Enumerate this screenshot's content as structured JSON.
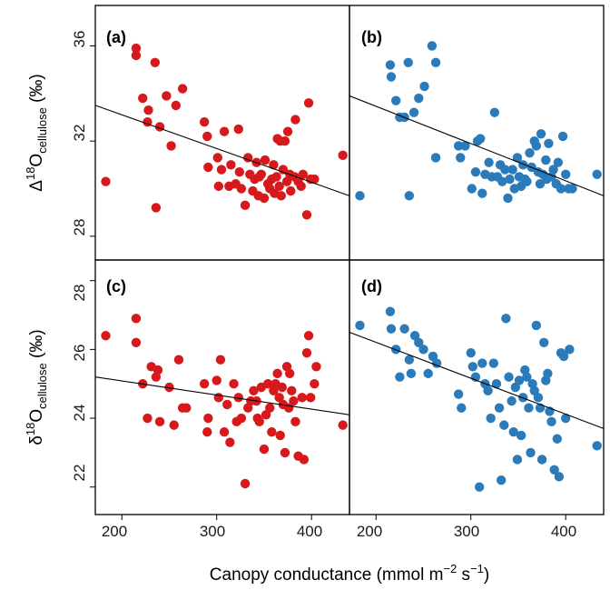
{
  "figure": {
    "xlabel": {
      "main": "Canopy conductance (mmol m",
      "exp1": "−2",
      "mid": " s",
      "exp2": "−1",
      "end": ")"
    },
    "ylabel_top": {
      "prefix": "Δ",
      "sup": "18",
      "main": "O",
      "sub": "cellulose",
      "unit": " (‰)"
    },
    "ylabel_bottom": {
      "prefix": "δ",
      "sup": "18",
      "main": "O",
      "sub": "cellulose",
      "unit": " (‰)"
    },
    "x_ticks": [
      "200",
      "300",
      "400"
    ],
    "y_ticks_top": [
      "28",
      "32",
      "36"
    ],
    "y_ticks_bottom": [
      "22",
      "24",
      "26",
      "28"
    ]
  },
  "colors": {
    "red": "#d7191c",
    "blue": "#2b7bba"
  },
  "chart_data": [
    {
      "type": "scatter",
      "panel": "(a)",
      "color": "#d7191c",
      "xlim": [
        172,
        440
      ],
      "ylim": [
        27.0,
        37.7
      ],
      "fit_line": [
        [
          172,
          33.5
        ],
        [
          440,
          29.7
        ]
      ],
      "points": [
        [
          183,
          30.3
        ],
        [
          215,
          35.9
        ],
        [
          215,
          35.6
        ],
        [
          222,
          33.8
        ],
        [
          227,
          32.8
        ],
        [
          228,
          33.3
        ],
        [
          235,
          35.3
        ],
        [
          236,
          29.2
        ],
        [
          240,
          32.6
        ],
        [
          247,
          33.9
        ],
        [
          252,
          31.8
        ],
        [
          257,
          33.5
        ],
        [
          264,
          34.2
        ],
        [
          287,
          32.8
        ],
        [
          290,
          32.2
        ],
        [
          291,
          30.9
        ],
        [
          301,
          31.3
        ],
        [
          302,
          30.1
        ],
        [
          305,
          30.8
        ],
        [
          308,
          32.4
        ],
        [
          313,
          30.1
        ],
        [
          315,
          31.0
        ],
        [
          320,
          30.2
        ],
        [
          323,
          32.5
        ],
        [
          324,
          30.7
        ],
        [
          326,
          30.0
        ],
        [
          330,
          29.3
        ],
        [
          333,
          31.3
        ],
        [
          335,
          30.6
        ],
        [
          338,
          29.9
        ],
        [
          340,
          30.4
        ],
        [
          342,
          31.1
        ],
        [
          344,
          29.7
        ],
        [
          345,
          30.5
        ],
        [
          347,
          30.6
        ],
        [
          350,
          29.6
        ],
        [
          351,
          31.2
        ],
        [
          354,
          30.2
        ],
        [
          356,
          30.0
        ],
        [
          358,
          30.4
        ],
        [
          360,
          31.0
        ],
        [
          361,
          29.8
        ],
        [
          363,
          30.5
        ],
        [
          364,
          32.1
        ],
        [
          366,
          30.1
        ],
        [
          367,
          32.0
        ],
        [
          368,
          29.7
        ],
        [
          370,
          30.8
        ],
        [
          372,
          32.0
        ],
        [
          374,
          30.3
        ],
        [
          375,
          32.4
        ],
        [
          377,
          30.6
        ],
        [
          378,
          29.9
        ],
        [
          382,
          30.5
        ],
        [
          383,
          32.9
        ],
        [
          386,
          30.3
        ],
        [
          389,
          30.1
        ],
        [
          391,
          30.6
        ],
        [
          395,
          28.9
        ],
        [
          397,
          33.6
        ],
        [
          399,
          30.4
        ],
        [
          403,
          30.4
        ],
        [
          433,
          31.4
        ]
      ]
    },
    {
      "type": "scatter",
      "panel": "(b)",
      "color": "#2b7bba",
      "xlim": [
        172,
        440
      ],
      "ylim": [
        27.0,
        37.7
      ],
      "fit_line": [
        [
          172,
          33.9
        ],
        [
          440,
          29.7
        ]
      ],
      "points": [
        [
          183,
          29.7
        ],
        [
          215,
          35.2
        ],
        [
          216,
          34.7
        ],
        [
          221,
          33.7
        ],
        [
          225,
          33.0
        ],
        [
          230,
          33.0
        ],
        [
          234,
          35.3
        ],
        [
          235,
          29.7
        ],
        [
          240,
          33.2
        ],
        [
          245,
          33.8
        ],
        [
          251,
          34.3
        ],
        [
          259,
          36.0
        ],
        [
          263,
          35.3
        ],
        [
          263,
          31.3
        ],
        [
          287,
          31.8
        ],
        [
          289,
          31.3
        ],
        [
          294,
          31.8
        ],
        [
          301,
          30.0
        ],
        [
          305,
          30.7
        ],
        [
          307,
          32.0
        ],
        [
          310,
          32.1
        ],
        [
          312,
          29.8
        ],
        [
          315,
          30.6
        ],
        [
          319,
          31.1
        ],
        [
          322,
          30.5
        ],
        [
          325,
          33.2
        ],
        [
          328,
          30.5
        ],
        [
          331,
          31.0
        ],
        [
          333,
          30.3
        ],
        [
          336,
          30.8
        ],
        [
          339,
          29.6
        ],
        [
          341,
          30.4
        ],
        [
          344,
          30.8
        ],
        [
          346,
          30.0
        ],
        [
          349,
          31.3
        ],
        [
          351,
          30.5
        ],
        [
          353,
          30.1
        ],
        [
          355,
          31.0
        ],
        [
          357,
          30.4
        ],
        [
          359,
          30.3
        ],
        [
          362,
          31.5
        ],
        [
          364,
          30.9
        ],
        [
          367,
          32.0
        ],
        [
          369,
          31.8
        ],
        [
          371,
          30.7
        ],
        [
          373,
          30.2
        ],
        [
          374,
          32.3
        ],
        [
          376,
          30.6
        ],
        [
          379,
          31.2
        ],
        [
          380,
          30.4
        ],
        [
          382,
          31.9
        ],
        [
          385,
          30.5
        ],
        [
          387,
          30.8
        ],
        [
          390,
          30.2
        ],
        [
          392,
          31.1
        ],
        [
          395,
          30.0
        ],
        [
          397,
          32.2
        ],
        [
          400,
          30.6
        ],
        [
          403,
          30.0
        ],
        [
          407,
          30.0
        ],
        [
          433,
          30.6
        ]
      ]
    },
    {
      "type": "scatter",
      "panel": "(c)",
      "color": "#d7191c",
      "xlim": [
        172,
        440
      ],
      "ylim": [
        21.2,
        28.6
      ],
      "fit_line": [
        [
          172,
          25.2
        ],
        [
          440,
          24.1
        ]
      ],
      "points": [
        [
          183,
          26.4
        ],
        [
          215,
          26.9
        ],
        [
          215,
          26.2
        ],
        [
          222,
          25.0
        ],
        [
          227,
          24.0
        ],
        [
          231,
          25.5
        ],
        [
          236,
          25.2
        ],
        [
          238,
          25.4
        ],
        [
          240,
          23.9
        ],
        [
          250,
          24.9
        ],
        [
          255,
          23.8
        ],
        [
          260,
          25.7
        ],
        [
          264,
          24.3
        ],
        [
          268,
          24.3
        ],
        [
          287,
          25.0
        ],
        [
          290,
          23.6
        ],
        [
          291,
          24.0
        ],
        [
          300,
          25.1
        ],
        [
          302,
          24.6
        ],
        [
          304,
          25.7
        ],
        [
          308,
          23.6
        ],
        [
          311,
          24.4
        ],
        [
          314,
          23.3
        ],
        [
          318,
          25.0
        ],
        [
          321,
          23.9
        ],
        [
          323,
          24.6
        ],
        [
          326,
          24.0
        ],
        [
          330,
          22.1
        ],
        [
          333,
          24.3
        ],
        [
          336,
          24.5
        ],
        [
          339,
          24.8
        ],
        [
          342,
          24.5
        ],
        [
          343,
          24.0
        ],
        [
          345,
          23.9
        ],
        [
          347,
          24.9
        ],
        [
          350,
          23.1
        ],
        [
          352,
          24.1
        ],
        [
          354,
          25.0
        ],
        [
          356,
          24.3
        ],
        [
          358,
          23.6
        ],
        [
          360,
          24.8
        ],
        [
          362,
          25.0
        ],
        [
          364,
          25.3
        ],
        [
          366,
          24.6
        ],
        [
          367,
          23.5
        ],
        [
          369,
          24.9
        ],
        [
          370,
          24.4
        ],
        [
          372,
          23.0
        ],
        [
          374,
          25.5
        ],
        [
          376,
          24.3
        ],
        [
          377,
          25.3
        ],
        [
          379,
          24.8
        ],
        [
          381,
          24.5
        ],
        [
          383,
          23.9
        ],
        [
          386,
          22.9
        ],
        [
          390,
          24.6
        ],
        [
          392,
          22.8
        ],
        [
          395,
          25.9
        ],
        [
          397,
          26.4
        ],
        [
          399,
          24.6
        ],
        [
          403,
          25.0
        ],
        [
          405,
          25.5
        ],
        [
          433,
          23.8
        ]
      ]
    },
    {
      "type": "scatter",
      "panel": "(d)",
      "color": "#2b7bba",
      "xlim": [
        172,
        440
      ],
      "ylim": [
        21.2,
        28.6
      ],
      "fit_line": [
        [
          172,
          26.5
        ],
        [
          440,
          23.7
        ]
      ],
      "points": [
        [
          183,
          26.7
        ],
        [
          215,
          27.1
        ],
        [
          216,
          26.6
        ],
        [
          221,
          26.0
        ],
        [
          225,
          25.2
        ],
        [
          230,
          26.6
        ],
        [
          235,
          25.7
        ],
        [
          237,
          25.3
        ],
        [
          241,
          26.4
        ],
        [
          245,
          26.2
        ],
        [
          250,
          26.0
        ],
        [
          255,
          25.3
        ],
        [
          260,
          25.8
        ],
        [
          264,
          25.6
        ],
        [
          287,
          24.7
        ],
        [
          290,
          24.3
        ],
        [
          300,
          25.9
        ],
        [
          302,
          25.5
        ],
        [
          305,
          25.2
        ],
        [
          309,
          22.0
        ],
        [
          312,
          25.6
        ],
        [
          315,
          25.0
        ],
        [
          318,
          24.8
        ],
        [
          321,
          24.0
        ],
        [
          324,
          25.6
        ],
        [
          327,
          25.0
        ],
        [
          330,
          24.3
        ],
        [
          332,
          22.2
        ],
        [
          335,
          23.8
        ],
        [
          337,
          26.9
        ],
        [
          340,
          25.2
        ],
        [
          343,
          24.5
        ],
        [
          345,
          23.6
        ],
        [
          347,
          24.9
        ],
        [
          349,
          22.8
        ],
        [
          351,
          25.1
        ],
        [
          353,
          23.5
        ],
        [
          355,
          24.6
        ],
        [
          357,
          25.4
        ],
        [
          359,
          25.2
        ],
        [
          361,
          24.3
        ],
        [
          363,
          23.0
        ],
        [
          365,
          25.0
        ],
        [
          367,
          24.8
        ],
        [
          369,
          26.7
        ],
        [
          371,
          24.6
        ],
        [
          373,
          24.3
        ],
        [
          375,
          22.8
        ],
        [
          377,
          26.2
        ],
        [
          379,
          25.1
        ],
        [
          381,
          25.3
        ],
        [
          383,
          24.2
        ],
        [
          385,
          23.9
        ],
        [
          388,
          22.5
        ],
        [
          391,
          23.4
        ],
        [
          393,
          22.3
        ],
        [
          395,
          25.9
        ],
        [
          398,
          25.8
        ],
        [
          400,
          24.0
        ],
        [
          404,
          26.0
        ],
        [
          433,
          23.2
        ]
      ]
    }
  ]
}
